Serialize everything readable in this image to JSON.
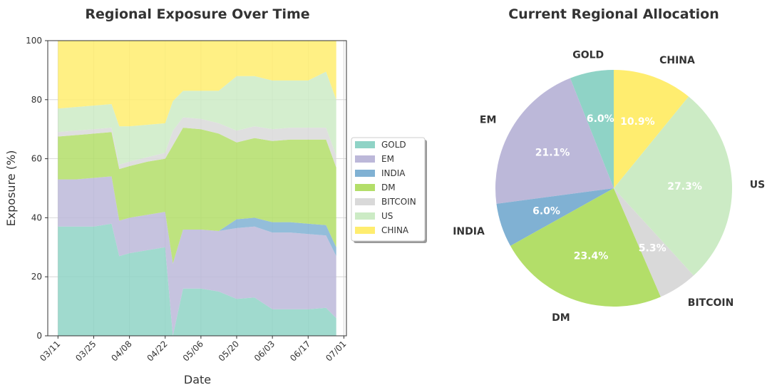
{
  "chart_data": [
    {
      "type": "area",
      "stacked": true,
      "title": "Regional Exposure Over Time",
      "xlabel": "Date",
      "ylabel": "Exposure (%)",
      "ylim": [
        0,
        100
      ],
      "yticks": [
        0,
        20,
        40,
        60,
        80,
        100
      ],
      "xlim": [
        "2024-03-07",
        "2024-07-02"
      ],
      "xticks": [
        "2024-03-11",
        "2024-03-25",
        "2024-04-08",
        "2024-04-22",
        "2024-05-06",
        "2024-05-20",
        "2024-06-03",
        "2024-06-17",
        "2024-07-01"
      ],
      "xtick_labels": [
        "03/11",
        "03/25",
        "04/08",
        "04/22",
        "05/06",
        "05/20",
        "06/03",
        "06/17",
        "07/01"
      ],
      "grid": true,
      "legend_position": "right",
      "x": [
        "2024-03-11",
        "2024-03-18",
        "2024-03-25",
        "2024-04-01",
        "2024-04-04",
        "2024-04-08",
        "2024-04-15",
        "2024-04-22",
        "2024-04-25",
        "2024-04-29",
        "2024-05-06",
        "2024-05-13",
        "2024-05-20",
        "2024-05-27",
        "2024-06-03",
        "2024-06-10",
        "2024-06-17",
        "2024-06-24",
        "2024-06-28"
      ],
      "series": [
        {
          "name": "GOLD",
          "color": "#8fd3c6",
          "values": [
            37,
            37,
            37,
            38,
            27,
            28,
            29,
            30,
            0,
            16,
            16,
            15,
            12.5,
            13,
            9,
            9,
            9,
            9.5,
            6
          ]
        },
        {
          "name": "EM",
          "color": "#bcb8d9",
          "values": [
            16,
            16,
            16.5,
            16,
            12,
            12,
            12,
            12,
            24.5,
            20,
            20,
            20.5,
            24,
            24,
            26,
            26,
            25.5,
            24.5,
            21
          ]
        },
        {
          "name": "INDIA",
          "color": "#80b1d3",
          "values": [
            0,
            0,
            0,
            0,
            0,
            0,
            0,
            0,
            0,
            0,
            0,
            0,
            3,
            3,
            3.5,
            3.5,
            3.5,
            3.5,
            3
          ]
        },
        {
          "name": "DM",
          "color": "#b3de69",
          "values": [
            14.5,
            15,
            15,
            15,
            17.5,
            17.5,
            18,
            18,
            40,
            34.5,
            34,
            33,
            26,
            27,
            27.5,
            28,
            28.5,
            29,
            27
          ]
        },
        {
          "name": "BITCOIN",
          "color": "#d9d9d9",
          "values": [
            1.5,
            1.5,
            1.5,
            1.5,
            1.5,
            1.5,
            1.5,
            2,
            5,
            3.5,
            3.5,
            3.5,
            4,
            4,
            4,
            4,
            4,
            4,
            4
          ]
        },
        {
          "name": "US",
          "color": "#ccebc5",
          "values": [
            8,
            8,
            8,
            8,
            13,
            12,
            11,
            10,
            10,
            9,
            9.5,
            11,
            18.5,
            17,
            16.5,
            16,
            16,
            19,
            19
          ]
        },
        {
          "name": "CHINA",
          "color": "#ffed6f",
          "values": [
            23,
            22.5,
            22,
            21.5,
            29,
            29,
            28.5,
            28,
            20.5,
            17,
            17,
            17,
            12,
            12,
            13.5,
            13.5,
            13.5,
            10.5,
            20
          ]
        }
      ]
    },
    {
      "type": "pie",
      "title": "Current Regional Allocation",
      "slices": [
        {
          "label": "GOLD",
          "value": 6.0,
          "pct_label": "6.0%",
          "color": "#8fd3c6"
        },
        {
          "label": "EM",
          "value": 21.1,
          "pct_label": "21.1%",
          "color": "#bcb8d9"
        },
        {
          "label": "INDIA",
          "value": 6.0,
          "pct_label": "6.0%",
          "color": "#80b1d3"
        },
        {
          "label": "DM",
          "value": 23.4,
          "pct_label": "23.4%",
          "color": "#b3de69"
        },
        {
          "label": "BITCOIN",
          "value": 5.3,
          "pct_label": "5.3%",
          "color": "#d9d9d9"
        },
        {
          "label": "US",
          "value": 27.3,
          "pct_label": "27.3%",
          "color": "#ccebc5"
        },
        {
          "label": "CHINA",
          "value": 10.9,
          "pct_label": "10.9%",
          "color": "#ffed6f"
        }
      ]
    }
  ]
}
